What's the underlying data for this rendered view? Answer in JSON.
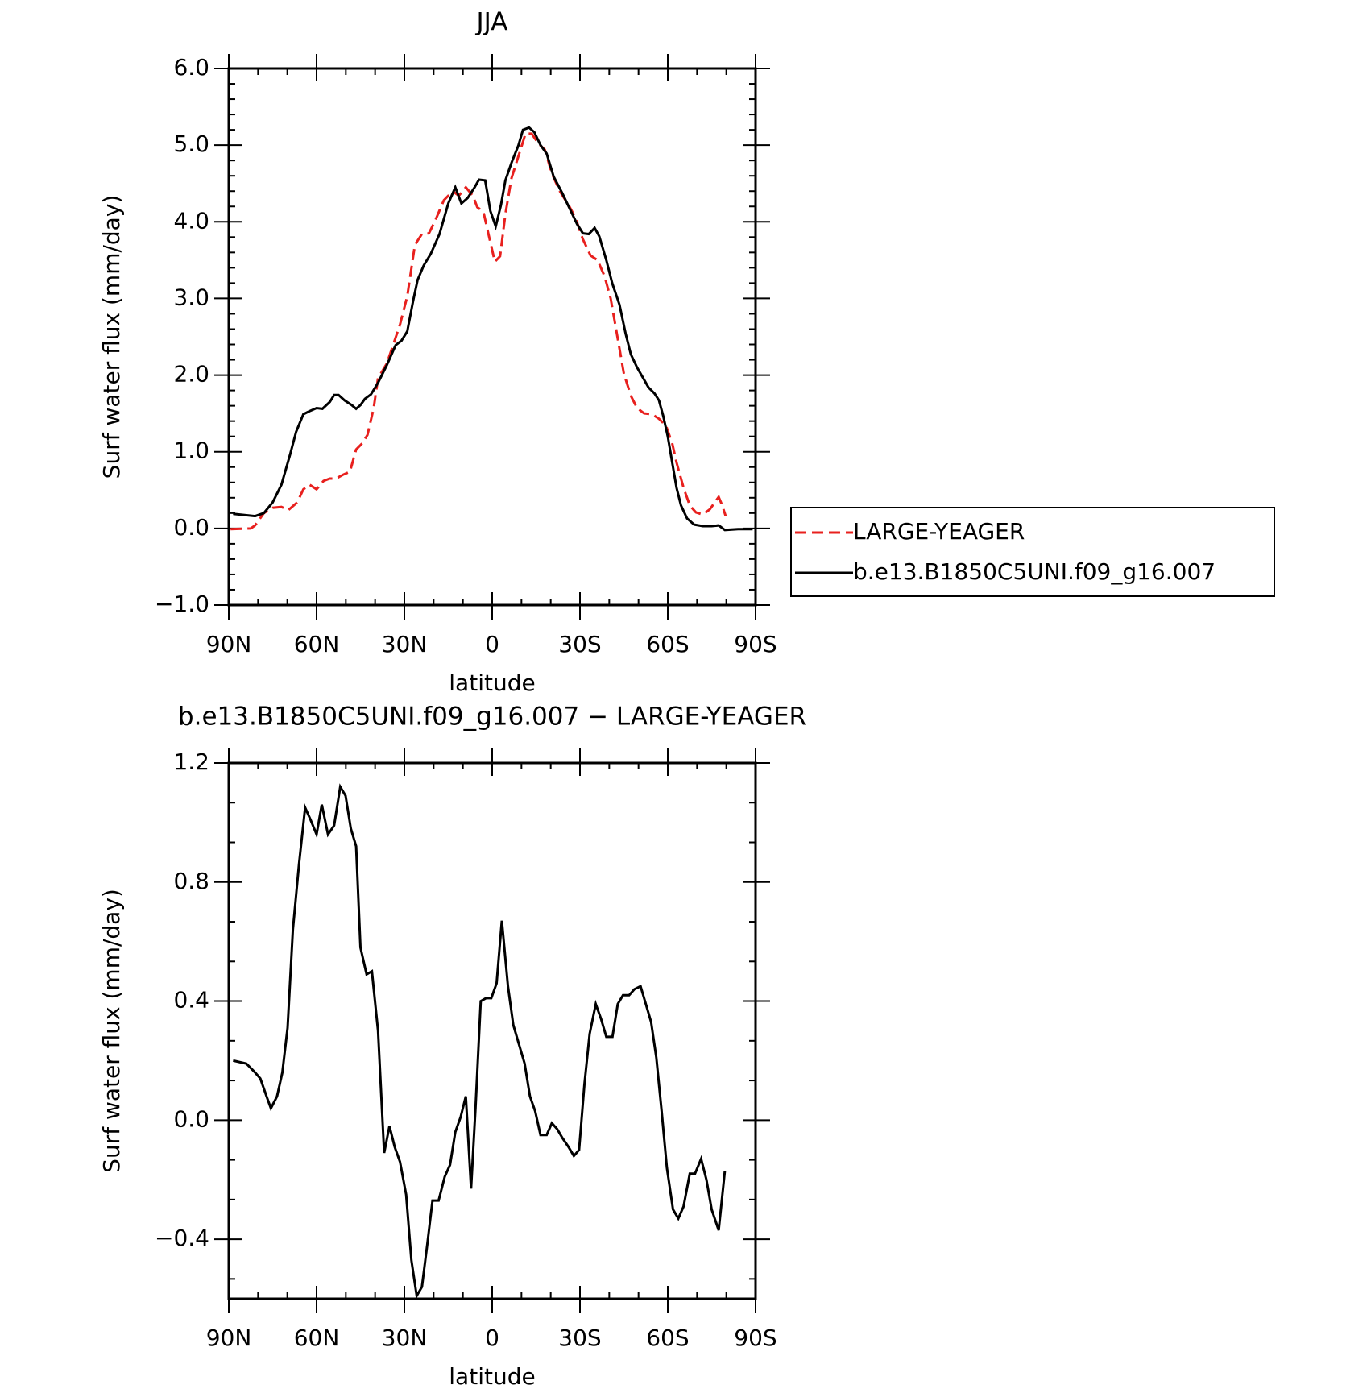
{
  "chart_data": [
    {
      "type": "line",
      "title": "JJA",
      "xlabel": "latitude",
      "ylabel": "Surf water flux (mm/day)",
      "xlim": [
        90,
        -90
      ],
      "ylim": [
        -1,
        6
      ],
      "xticks": [
        {
          "value": 90,
          "label": "90N"
        },
        {
          "value": 60,
          "label": "60N"
        },
        {
          "value": 30,
          "label": "30N"
        },
        0,
        {
          "value": -30,
          "label": "30S"
        },
        {
          "value": -60,
          "label": "60S"
        },
        {
          "value": -90,
          "label": "90S"
        }
      ],
      "yticks": [
        {
          "value": -1,
          "label": "−1.0"
        },
        {
          "value": 0,
          "label": "0.0"
        },
        {
          "value": 1,
          "label": "1.0"
        },
        {
          "value": 2,
          "label": "2.0"
        },
        {
          "value": 3,
          "label": "3.0"
        },
        {
          "value": 4,
          "label": "4.0"
        },
        {
          "value": 5,
          "label": "5.0"
        },
        {
          "value": 6,
          "label": "6.0"
        }
      ],
      "legend": "right",
      "series": [
        {
          "name": "LARGE-YEAGER",
          "color": "#e8201e",
          "style": "dashed",
          "x": [
            89.4,
            82.5,
            81,
            78,
            75,
            72,
            69.6,
            66.6,
            64.5,
            62.4,
            60,
            57.6,
            55.5,
            53.4,
            51,
            48.6,
            46.5,
            44.4,
            42.6,
            40.5,
            39,
            36,
            33.6,
            31.5,
            29,
            26.4,
            24,
            21.6,
            19.5,
            16.5,
            13.5,
            11.4,
            9,
            6.6,
            5.1,
            3,
            0.9,
            -0.9,
            -2.7,
            -4.5,
            -6.6,
            -9,
            -11.4,
            -13.5,
            -15.6,
            -18,
            -20.4,
            -23.1,
            -26.1,
            -28.5,
            -30.9,
            -33.6,
            -36,
            -38.4,
            -40.5,
            -42.6,
            -45,
            -47.4,
            -49.5,
            -51.9,
            -54.6,
            -57,
            -59.4,
            -61.5,
            -63,
            -65.4,
            -67.5,
            -69.6,
            -72,
            -74.4,
            -77.4,
            -78.6,
            -79.8
          ],
          "values": [
            -0.01,
            0.0,
            0.04,
            0.2,
            0.27,
            0.28,
            0.24,
            0.34,
            0.51,
            0.57,
            0.51,
            0.62,
            0.65,
            0.65,
            0.7,
            0.74,
            1.03,
            1.11,
            1.22,
            1.57,
            1.96,
            2.15,
            2.42,
            2.66,
            3.03,
            3.7,
            3.84,
            3.85,
            4.01,
            4.28,
            4.4,
            4.34,
            4.45,
            4.34,
            4.19,
            4.13,
            3.78,
            3.48,
            3.55,
            4.1,
            4.57,
            4.86,
            5.15,
            5.15,
            5.03,
            4.94,
            4.63,
            4.4,
            4.22,
            4.05,
            3.78,
            3.56,
            3.5,
            3.29,
            3.0,
            2.54,
            2.02,
            1.73,
            1.57,
            1.5,
            1.49,
            1.43,
            1.34,
            1.11,
            0.86,
            0.53,
            0.3,
            0.21,
            0.18,
            0.25,
            0.41,
            0.3,
            0.16
          ]
        },
        {
          "name": "b.e13.B1850C5UNI.f09_g16.007",
          "color": "#000000",
          "style": "solid",
          "x": [
            88.5,
            81,
            78,
            75,
            72,
            69,
            67,
            64.5,
            62.4,
            60,
            58,
            55.5,
            54,
            52.5,
            50.4,
            48,
            46.5,
            45,
            43.5,
            41.4,
            39,
            36,
            33,
            31,
            29,
            27,
            25.5,
            23.4,
            21,
            18,
            15,
            12.6,
            10.5,
            8.4,
            6,
            4.5,
            2.4,
            0.6,
            -1.2,
            -3,
            -4.5,
            -6.6,
            -9,
            -10.5,
            -12.6,
            -14.4,
            -16.5,
            -18.6,
            -21,
            -24,
            -27,
            -29,
            -31,
            -33,
            -35,
            -36.6,
            -39,
            -41,
            -43.5,
            -45.6,
            -47.4,
            -49.5,
            -51.6,
            -53.4,
            -55.5,
            -57,
            -58.5,
            -60,
            -61.5,
            -63,
            -64.5,
            -66.6,
            -69,
            -72,
            -75,
            -77.4,
            -79.5,
            -84,
            -89
          ],
          "values": [
            0.19,
            0.16,
            0.2,
            0.34,
            0.57,
            0.97,
            1.26,
            1.49,
            1.53,
            1.57,
            1.56,
            1.65,
            1.74,
            1.74,
            1.67,
            1.61,
            1.56,
            1.61,
            1.69,
            1.75,
            1.9,
            2.13,
            2.39,
            2.45,
            2.57,
            2.97,
            3.24,
            3.43,
            3.58,
            3.84,
            4.24,
            4.45,
            4.24,
            4.31,
            4.45,
            4.55,
            4.54,
            4.14,
            3.94,
            4.22,
            4.54,
            4.77,
            5.0,
            5.2,
            5.23,
            5.17,
            5.0,
            4.89,
            4.59,
            4.37,
            4.13,
            3.97,
            3.85,
            3.84,
            3.92,
            3.81,
            3.5,
            3.2,
            2.92,
            2.54,
            2.27,
            2.1,
            1.96,
            1.84,
            1.76,
            1.67,
            1.46,
            1.2,
            0.86,
            0.53,
            0.3,
            0.13,
            0.05,
            0.03,
            0.03,
            0.04,
            -0.02,
            -0.01,
            -0.01
          ]
        }
      ]
    },
    {
      "type": "line",
      "title": "b.e13.B1850C5UNI.f09_g16.007 − LARGE-YEAGER",
      "xlabel": "latitude",
      "ylabel": "Surf water flux (mm/day)",
      "xlim": [
        90,
        -90
      ],
      "ylim": [
        -0.6,
        1.2
      ],
      "xticks": [
        {
          "value": 90,
          "label": "90N"
        },
        {
          "value": 60,
          "label": "60N"
        },
        {
          "value": 30,
          "label": "30N"
        },
        0,
        {
          "value": -30,
          "label": "30S"
        },
        {
          "value": -60,
          "label": "60S"
        },
        {
          "value": -90,
          "label": "90S"
        }
      ],
      "yticks": [
        {
          "value": -0.4,
          "label": "−0.4"
        },
        {
          "value": 0,
          "label": "0.0"
        },
        0.4,
        0.8,
        1.2
      ],
      "series": [
        {
          "color": "#000000",
          "style": "solid",
          "x": [
            88.5,
            84,
            81,
            79.2,
            77.1,
            75.6,
            73.5,
            71.7,
            69.9,
            68.1,
            66,
            63.9,
            62.1,
            60,
            58.2,
            56.1,
            54,
            51.9,
            50.1,
            48.3,
            46.5,
            45,
            42.9,
            41.1,
            39,
            36.9,
            35.1,
            33.3,
            31.5,
            29.4,
            27.6,
            25.8,
            24,
            22.2,
            20.4,
            18.3,
            16.2,
            14.4,
            12.6,
            10.8,
            9,
            7.2,
            5.7,
            3.9,
            2.1,
            0.3,
            -1.5,
            -3.3,
            -5.4,
            -7.2,
            -9,
            -11.1,
            -12.9,
            -14.7,
            -16.5,
            -18.6,
            -20.4,
            -22.2,
            -24,
            -26.1,
            -27.9,
            -29.7,
            -31.5,
            -33.3,
            -35.4,
            -37.2,
            -39,
            -41.1,
            -42.9,
            -44.7,
            -46.8,
            -48.6,
            -50.7,
            -52.5,
            -54.3,
            -56.1,
            -57.9,
            -59.7,
            -61.8,
            -63.6,
            -65.4,
            -67.5,
            -69.3,
            -71.4,
            -73.2,
            -75,
            -77.4,
            -79.5
          ],
          "values": [
            0.2,
            0.19,
            0.16,
            0.14,
            0.08,
            0.04,
            0.08,
            0.16,
            0.31,
            0.64,
            0.86,
            1.05,
            1.01,
            0.96,
            1.06,
            0.96,
            0.99,
            1.12,
            1.09,
            0.98,
            0.92,
            0.58,
            0.49,
            0.5,
            0.3,
            -0.11,
            -0.02,
            -0.09,
            -0.14,
            -0.25,
            -0.47,
            -0.59,
            -0.56,
            -0.42,
            -0.27,
            -0.27,
            -0.19,
            -0.15,
            -0.04,
            0.01,
            0.08,
            -0.23,
            0.04,
            0.4,
            0.41,
            0.41,
            0.46,
            0.67,
            0.45,
            0.32,
            0.26,
            0.19,
            0.08,
            0.03,
            -0.05,
            -0.05,
            -0.01,
            -0.03,
            -0.06,
            -0.09,
            -0.12,
            -0.1,
            0.12,
            0.29,
            0.39,
            0.34,
            0.28,
            0.28,
            0.39,
            0.42,
            0.42,
            0.44,
            0.45,
            0.39,
            0.33,
            0.21,
            0.03,
            -0.16,
            -0.3,
            -0.33,
            -0.29,
            -0.18,
            -0.18,
            -0.13,
            -0.2,
            -0.3,
            -0.37,
            -0.17
          ]
        }
      ]
    }
  ]
}
